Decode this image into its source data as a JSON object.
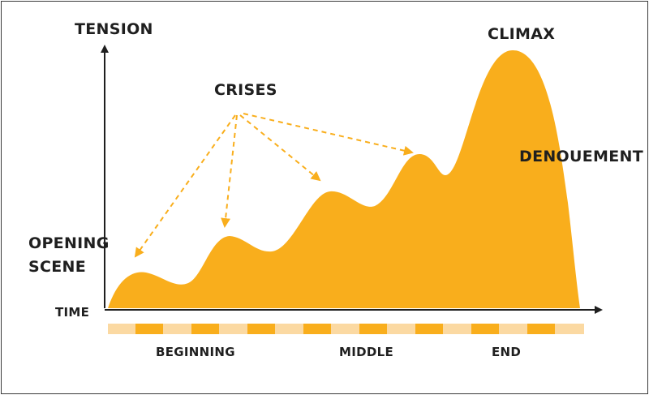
{
  "labels": {
    "y_axis": "TENSION",
    "x_axis": "TIME",
    "opening_line1": "OPENING",
    "opening_line2": "SCENE",
    "crises": "CRISES",
    "climax": "CLIMAX",
    "denouement": "DENOUEMENT",
    "beginning": "BEGINNING",
    "middle": "MIDDLE",
    "end": "END"
  },
  "colors": {
    "curve_fill": "#f9ae1c",
    "timeline_light": "#fbd9a2",
    "timeline_dark": "#f9ae1c",
    "axis": "#1f1f1f",
    "crises_arrows": "#f9ae1c"
  }
}
